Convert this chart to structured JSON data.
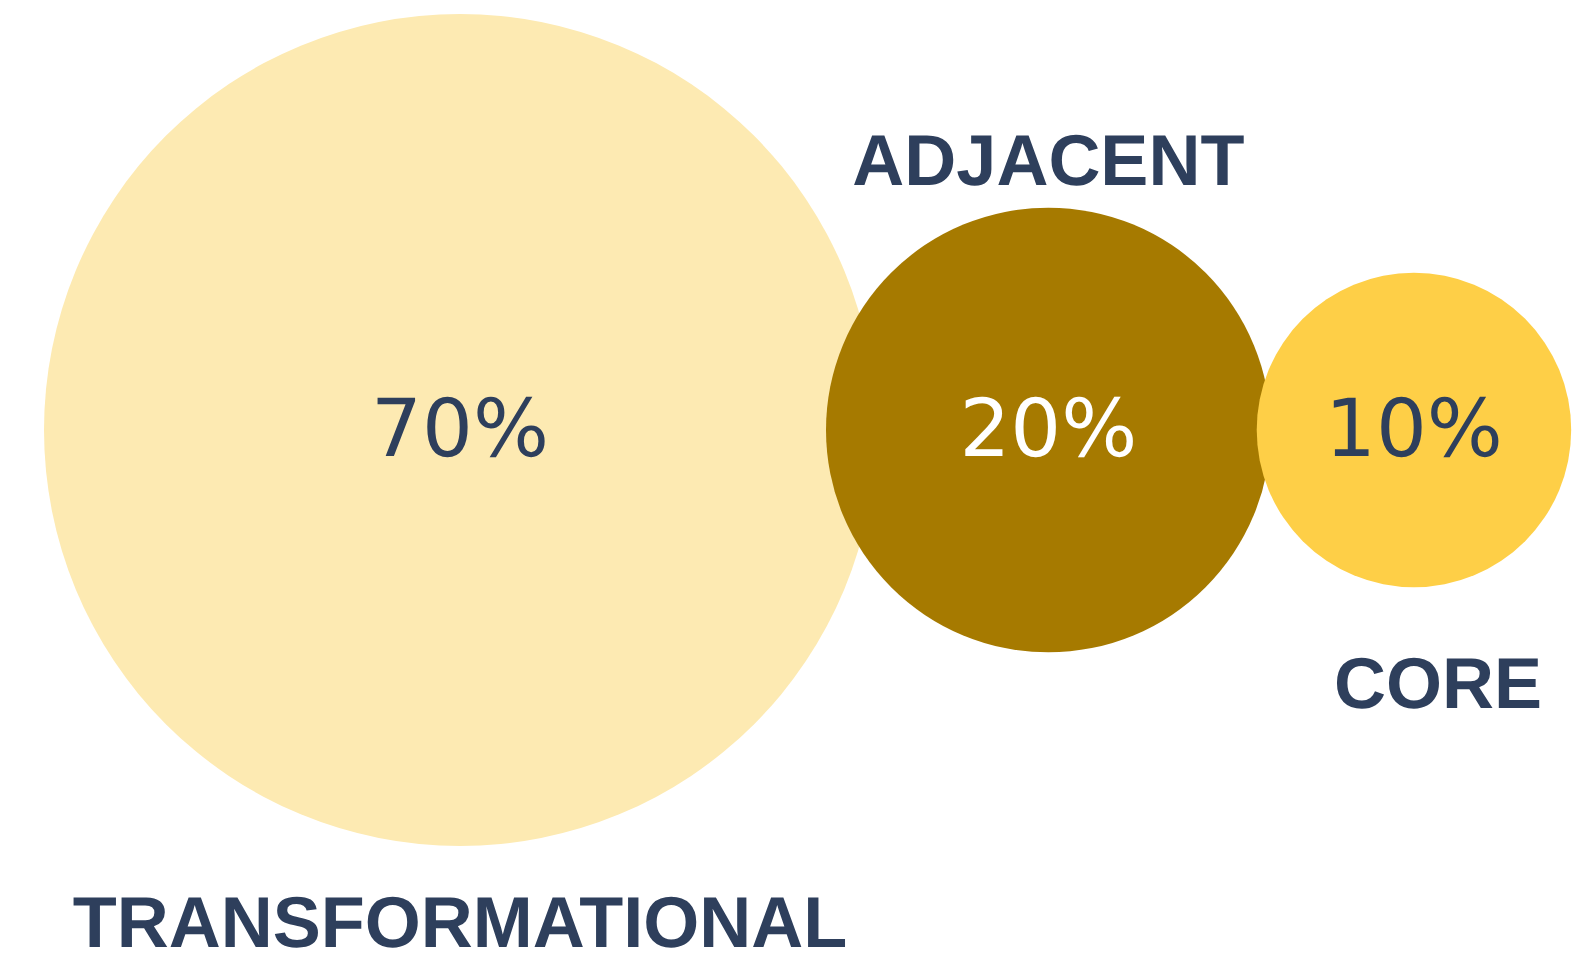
{
  "chart_data": {
    "type": "other",
    "categories": [
      "TRANSFORMATIONAL",
      "ADJACENT",
      "CORE"
    ],
    "values": [
      70,
      20,
      10
    ],
    "value_labels": [
      "70%",
      "20%",
      "10%"
    ],
    "colors": [
      "#fdeab2",
      "#a67a00",
      "#fecf47"
    ]
  }
}
